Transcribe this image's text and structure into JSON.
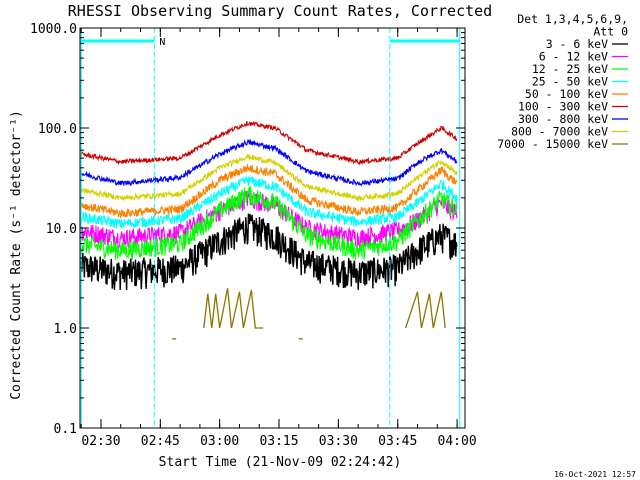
{
  "title": "RHESSI Observing Summary Count Rates, Corrected",
  "footer_timestamp": "16-Oct-2021 12:57",
  "chart_data": {
    "type": "line",
    "title": "RHESSI Observing Summary Count Rates, Corrected",
    "xlabel": "Start Time (21-Nov-09 02:24:42)",
    "ylabel": "Corrected Count Rate (s⁻¹ detector⁻¹)",
    "yscale": "log",
    "ylim": [
      0.1,
      1000
    ],
    "xlim": [
      "02:24:42",
      "04:02:00"
    ],
    "x_ticks": [
      "02:30",
      "02:45",
      "03:00",
      "03:15",
      "03:30",
      "03:45",
      "04:00"
    ],
    "y_ticks": [
      "0.1",
      "1.0",
      "10.0",
      "100.0",
      "1000.0"
    ],
    "grid": false,
    "legend_position": "top-right",
    "legend_header": [
      "Det 1,3,4,5,6,9,",
      "Att 0"
    ],
    "markers": {
      "night_label": "N",
      "night_lines": [
        "02:43:30",
        "03:43:00"
      ],
      "saa_lines": [
        "02:25:00",
        "04:00:40"
      ],
      "flag_bars": [
        {
          "start": "02:24:42",
          "end": "02:43:30"
        },
        {
          "start": "03:43:00",
          "end": "04:00:40"
        }
      ],
      "night_color": "#00ffff"
    },
    "series": [
      {
        "name": "3 - 6 keV",
        "color": "#000000",
        "noise": 0.35,
        "points": [
          [
            "02:25",
            4.2
          ],
          [
            "02:35",
            3.6
          ],
          [
            "02:50",
            4.0
          ],
          [
            "03:00",
            7.5
          ],
          [
            "03:07",
            10.5
          ],
          [
            "03:14",
            8.5
          ],
          [
            "03:22",
            4.5
          ],
          [
            "03:35",
            3.6
          ],
          [
            "03:45",
            4.0
          ],
          [
            "03:50",
            6.0
          ],
          [
            "03:56",
            8.5
          ],
          [
            "04:00",
            7.0
          ]
        ]
      },
      {
        "name": "6 - 12 keV",
        "color": "#ff00ff",
        "noise": 0.22,
        "points": [
          [
            "02:25",
            9.5
          ],
          [
            "02:35",
            8.0
          ],
          [
            "02:50",
            9.0
          ],
          [
            "03:00",
            15.0
          ],
          [
            "03:07",
            20.0
          ],
          [
            "03:14",
            17.0
          ],
          [
            "03:22",
            10.0
          ],
          [
            "03:35",
            8.0
          ],
          [
            "03:45",
            9.5
          ],
          [
            "03:50",
            12.0
          ],
          [
            "03:56",
            18.0
          ],
          [
            "04:00",
            14.0
          ]
        ]
      },
      {
        "name": "12 - 25 keV",
        "color": "#00ff00",
        "noise": 0.22,
        "points": [
          [
            "02:25",
            7.0
          ],
          [
            "02:35",
            6.0
          ],
          [
            "02:50",
            7.0
          ],
          [
            "03:00",
            15.0
          ],
          [
            "03:07",
            22.0
          ],
          [
            "03:14",
            18.0
          ],
          [
            "03:22",
            8.5
          ],
          [
            "03:35",
            6.0
          ],
          [
            "03:45",
            7.5
          ],
          [
            "03:50",
            12.0
          ],
          [
            "03:56",
            20.0
          ],
          [
            "04:00",
            15.0
          ]
        ]
      },
      {
        "name": "25 - 50 keV",
        "color": "#00ffff",
        "noise": 0.12,
        "points": [
          [
            "02:25",
            13.0
          ],
          [
            "02:35",
            11.0
          ],
          [
            "02:50",
            12.5
          ],
          [
            "03:00",
            22.0
          ],
          [
            "03:07",
            30.0
          ],
          [
            "03:14",
            26.0
          ],
          [
            "03:22",
            14.5
          ],
          [
            "03:35",
            11.5
          ],
          [
            "03:45",
            13.0
          ],
          [
            "03:50",
            18.0
          ],
          [
            "03:56",
            28.0
          ],
          [
            "04:00",
            20.0
          ]
        ]
      },
      {
        "name": "50 - 100 keV",
        "color": "#ff8000",
        "noise": 0.1,
        "points": [
          [
            "02:25",
            17.0
          ],
          [
            "02:35",
            14.0
          ],
          [
            "02:50",
            15.5
          ],
          [
            "03:00",
            30.0
          ],
          [
            "03:07",
            40.0
          ],
          [
            "03:14",
            35.0
          ],
          [
            "03:22",
            19.0
          ],
          [
            "03:35",
            14.5
          ],
          [
            "03:45",
            16.0
          ],
          [
            "03:50",
            24.0
          ],
          [
            "03:56",
            38.0
          ],
          [
            "04:00",
            28.0
          ]
        ]
      },
      {
        "name": "100 - 300 keV",
        "color": "#cc0000",
        "noise": 0.05,
        "points": [
          [
            "02:25",
            55.0
          ],
          [
            "02:35",
            46.0
          ],
          [
            "02:50",
            50.0
          ],
          [
            "03:00",
            85.0
          ],
          [
            "03:07",
            112.0
          ],
          [
            "03:14",
            100.0
          ],
          [
            "03:22",
            60.0
          ],
          [
            "03:35",
            46.0
          ],
          [
            "03:45",
            50.0
          ],
          [
            "03:50",
            70.0
          ],
          [
            "03:56",
            100.0
          ],
          [
            "04:00",
            78.0
          ]
        ]
      },
      {
        "name": "300 - 800 keV",
        "color": "#0000ff",
        "noise": 0.06,
        "points": [
          [
            "02:25",
            35.0
          ],
          [
            "02:35",
            28.0
          ],
          [
            "02:50",
            32.0
          ],
          [
            "03:00",
            55.0
          ],
          [
            "03:07",
            72.0
          ],
          [
            "03:14",
            63.0
          ],
          [
            "03:22",
            37.0
          ],
          [
            "03:35",
            28.0
          ],
          [
            "03:45",
            31.0
          ],
          [
            "03:50",
            45.0
          ],
          [
            "03:56",
            60.0
          ],
          [
            "04:00",
            46.0
          ]
        ]
      },
      {
        "name": "800 - 7000 keV",
        "color": "#d2d200",
        "noise": 0.06,
        "points": [
          [
            "02:25",
            24.0
          ],
          [
            "02:35",
            20.0
          ],
          [
            "02:50",
            22.0
          ],
          [
            "03:00",
            40.0
          ],
          [
            "03:07",
            52.0
          ],
          [
            "03:14",
            45.0
          ],
          [
            "03:22",
            26.0
          ],
          [
            "03:35",
            20.0
          ],
          [
            "03:45",
            22.0
          ],
          [
            "03:50",
            32.0
          ],
          [
            "03:56",
            47.0
          ],
          [
            "04:00",
            35.0
          ]
        ]
      },
      {
        "name": "7000 - 15000 keV",
        "color": "#8b7500",
        "noise": 0.0,
        "segments": [
          {
            "points": [
              [
                "02:56",
                1.0
              ],
              [
                "02:57",
                2.2
              ],
              [
                "02:58",
                1.0
              ],
              [
                "02:59",
                2.2
              ],
              [
                "03:00",
                1.0
              ],
              [
                "03:02",
                2.5
              ],
              [
                "03:03",
                1.0
              ],
              [
                "03:05",
                2.3
              ],
              [
                "03:06",
                1.0
              ],
              [
                "03:08",
                2.4
              ],
              [
                "03:09",
                1.0
              ],
              [
                "03:11",
                1.0
              ]
            ]
          },
          {
            "points": [
              [
                "03:47",
                1.0
              ],
              [
                "03:50",
                2.3
              ],
              [
                "03:51",
                1.0
              ],
              [
                "03:53",
                2.2
              ],
              [
                "03:54",
                1.0
              ],
              [
                "03:56",
                2.3
              ],
              [
                "03:57",
                1.0
              ]
            ]
          },
          {
            "points": [
              [
                "02:48",
                0.78
              ],
              [
                "02:49",
                0.78
              ]
            ]
          },
          {
            "points": [
              [
                "03:20",
                0.78
              ],
              [
                "03:21",
                0.78
              ]
            ]
          }
        ]
      }
    ]
  }
}
